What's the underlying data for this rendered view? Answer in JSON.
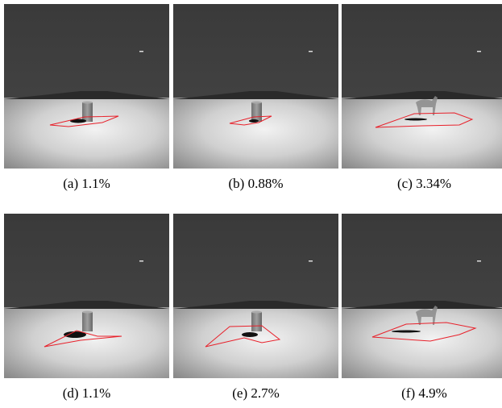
{
  "panels": [
    {
      "caption": "(a) 1.1%"
    },
    {
      "caption": "(b) 0.88%"
    },
    {
      "caption": "(c) 3.34%"
    },
    {
      "caption": "(d) 1.1%"
    },
    {
      "caption": "(e) 2.7%"
    },
    {
      "caption": "(f) 4.9%"
    }
  ]
}
